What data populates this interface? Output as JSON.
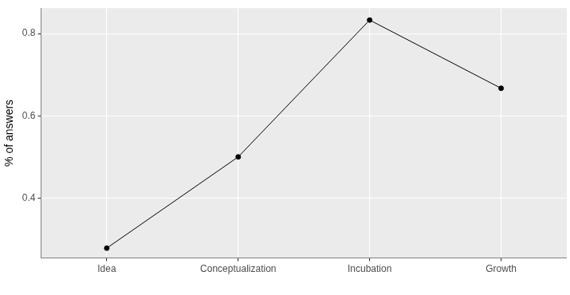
{
  "chart_data": {
    "type": "line",
    "categories": [
      "Idea",
      "Conceptualization",
      "Incubation",
      "Growth"
    ],
    "values": [
      0.278,
      0.5,
      0.833,
      0.667
    ],
    "color": "#000000",
    "ylim": [
      0.254,
      0.862
    ],
    "yticks": [
      0.4,
      0.6,
      0.8
    ],
    "y_label": "% of answers",
    "grid": true,
    "marker": "circle",
    "line_style": "solid"
  }
}
